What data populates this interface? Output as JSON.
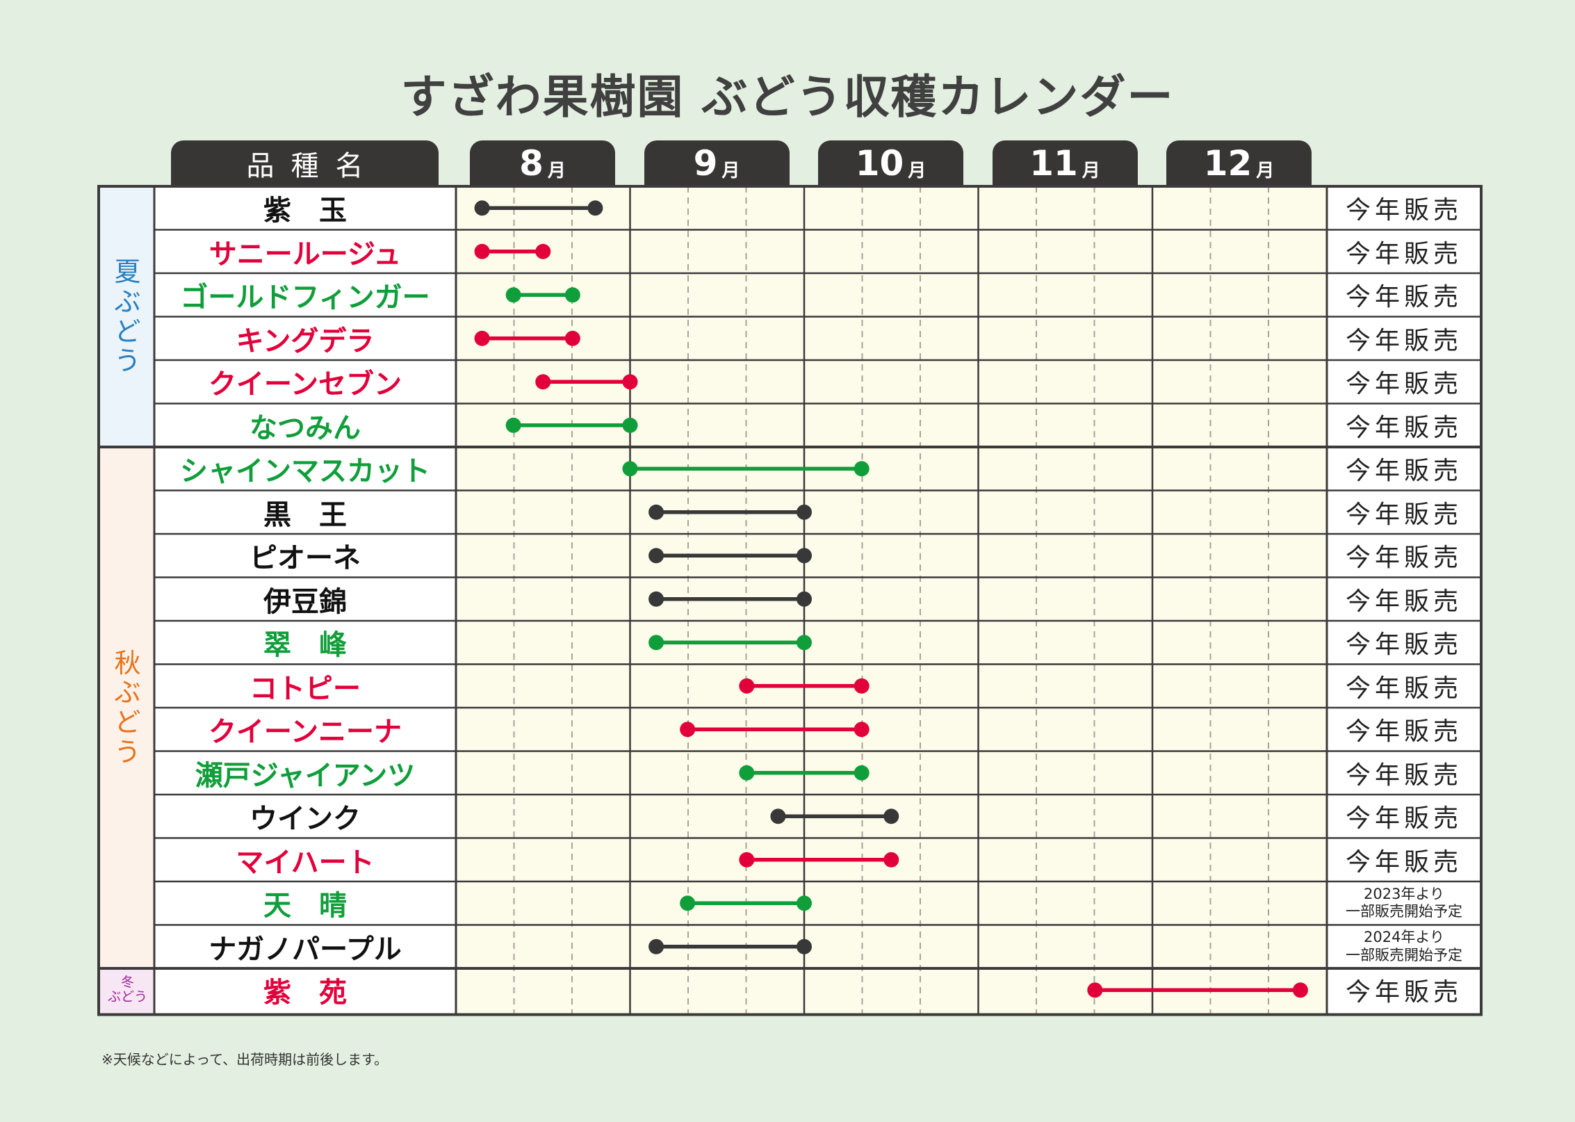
{
  "title": "すざわ果樹園 ぶどう収穫カレンダー",
  "header": {
    "variety_label": "品種名",
    "month_unit": "月",
    "months": [
      "8",
      "9",
      "10",
      "11",
      "12"
    ]
  },
  "categories": [
    {
      "name": "夏ぶどう",
      "label_lines": [
        "夏",
        "ぶ",
        "ど",
        "う"
      ],
      "color": "#2a7fc0",
      "bg": "#ebf4fa"
    },
    {
      "name": "秋ぶどう",
      "label_lines": [
        "秋",
        "ぶ",
        "ど",
        "う"
      ],
      "color": "#e8731a",
      "bg": "#fdf2ea"
    },
    {
      "name": "冬ぶどう",
      "label_lines": [
        "冬",
        "ぶどう"
      ],
      "color": "#a0259a",
      "bg": "#f7e6f3"
    }
  ],
  "colors": {
    "black": "#383838",
    "red": "#e2003a",
    "green": "#0f9e3a",
    "grid_bg": "#fdfbea",
    "frame": "#3c3a3a"
  },
  "chart_data": {
    "type": "table",
    "title": "すざわ果樹園 ぶどう収穫カレンダー",
    "x_axis": "month (8.0 = start of August, 13.0 = end of December)",
    "xlim": [
      8,
      13
    ],
    "rows": [
      {
        "variety": "紫　玉",
        "category": 0,
        "color": "black",
        "start": 8.15,
        "end": 8.8,
        "status": "今年販売"
      },
      {
        "variety": "サニールージュ",
        "category": 0,
        "color": "red",
        "start": 8.15,
        "end": 8.5,
        "status": "今年販売"
      },
      {
        "variety": "ゴールドフィンガー",
        "category": 0,
        "color": "green",
        "start": 8.33,
        "end": 8.67,
        "status": "今年販売"
      },
      {
        "variety": "キングデラ",
        "category": 0,
        "color": "red",
        "start": 8.15,
        "end": 8.67,
        "status": "今年販売"
      },
      {
        "variety": "クイーンセブン",
        "category": 0,
        "color": "red",
        "start": 8.5,
        "end": 9.0,
        "status": "今年販売"
      },
      {
        "variety": "なつみん",
        "category": 0,
        "color": "green",
        "start": 8.33,
        "end": 9.0,
        "status": "今年販売"
      },
      {
        "variety": "シャインマスカット",
        "category": 1,
        "color": "green",
        "start": 9.0,
        "end": 10.33,
        "status": "今年販売"
      },
      {
        "variety": "黒　王",
        "category": 1,
        "color": "black",
        "start": 9.15,
        "end": 10.0,
        "status": "今年販売"
      },
      {
        "variety": "ピオーネ",
        "category": 1,
        "color": "black",
        "start": 9.15,
        "end": 10.0,
        "status": "今年販売"
      },
      {
        "variety": "伊豆錦",
        "category": 1,
        "color": "black",
        "start": 9.15,
        "end": 10.0,
        "status": "今年販売"
      },
      {
        "variety": "翠　峰",
        "category": 1,
        "color": "green",
        "start": 9.15,
        "end": 10.0,
        "status": "今年販売"
      },
      {
        "variety": "コトピー",
        "category": 1,
        "color": "red",
        "start": 9.67,
        "end": 10.33,
        "status": "今年販売"
      },
      {
        "variety": "クイーンニーナ",
        "category": 1,
        "color": "red",
        "start": 9.33,
        "end": 10.33,
        "status": "今年販売"
      },
      {
        "variety": "瀬戸ジャイアンツ",
        "category": 1,
        "color": "green",
        "start": 9.67,
        "end": 10.33,
        "status": "今年販売"
      },
      {
        "variety": "ウインク",
        "category": 1,
        "color": "black",
        "start": 9.85,
        "end": 10.5,
        "status": "今年販売"
      },
      {
        "variety": "マイハート",
        "category": 1,
        "color": "red",
        "start": 9.67,
        "end": 10.5,
        "status": "今年販売"
      },
      {
        "variety": "天　晴",
        "category": 1,
        "color": "green",
        "start": 9.33,
        "end": 10.0,
        "status": "2023年より\n一部販売開始予定"
      },
      {
        "variety": "ナガノパープル",
        "category": 1,
        "color": "black",
        "start": 9.15,
        "end": 10.0,
        "status": "2024年より\n一部販売開始予定"
      },
      {
        "variety": "紫　苑",
        "category": 2,
        "color": "red",
        "start": 11.67,
        "end": 12.85,
        "status": "今年販売"
      }
    ]
  },
  "footnote": "※天候などによって、出荷時期は前後します。"
}
